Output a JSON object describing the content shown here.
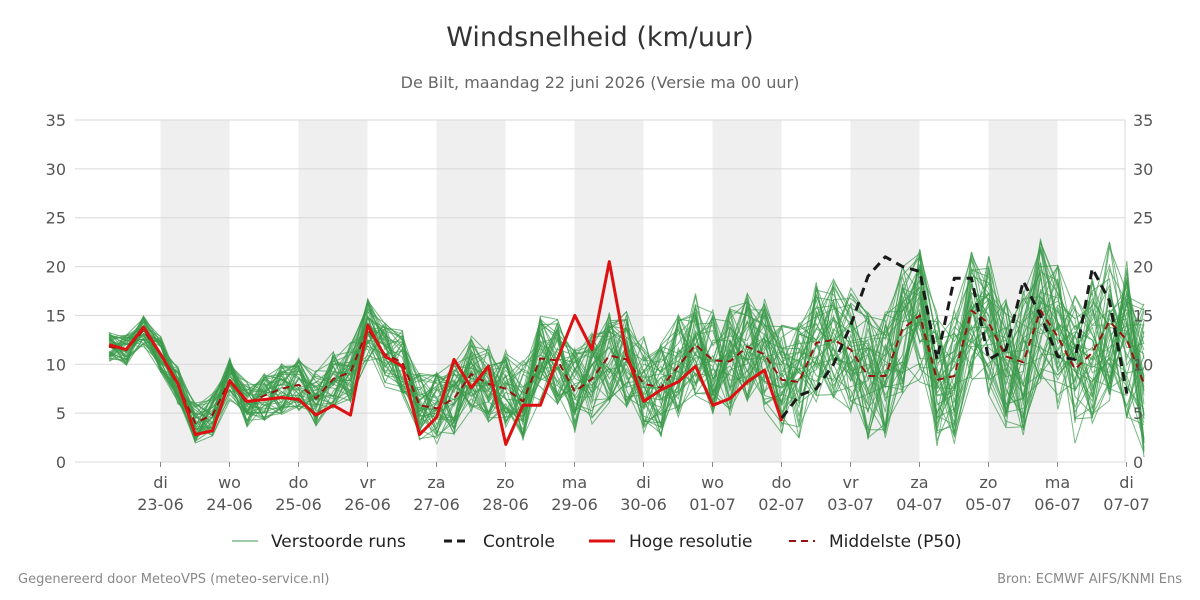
{
  "chart_data": {
    "type": "line",
    "title": "Windsnelheid (km/uur)",
    "subtitle": "De Bilt, maandag 22 juni 2026 (Versie ma 00 uur)",
    "ylim": [
      0,
      35
    ],
    "yticks": [
      0,
      5,
      10,
      15,
      20,
      25,
      30,
      35
    ],
    "x_ticks": [
      {
        "day": "di",
        "date": "23-06"
      },
      {
        "day": "wo",
        "date": "24-06"
      },
      {
        "day": "do",
        "date": "25-06"
      },
      {
        "day": "vr",
        "date": "26-06"
      },
      {
        "day": "za",
        "date": "27-06"
      },
      {
        "day": "zo",
        "date": "28-06"
      },
      {
        "day": "ma",
        "date": "29-06"
      },
      {
        "day": "di",
        "date": "30-06"
      },
      {
        "day": "wo",
        "date": "01-07"
      },
      {
        "day": "do",
        "date": "02-07"
      },
      {
        "day": "vr",
        "date": "03-07"
      },
      {
        "day": "za",
        "date": "04-07"
      },
      {
        "day": "zo",
        "date": "05-07"
      },
      {
        "day": "ma",
        "date": "06-07"
      },
      {
        "day": "di",
        "date": "07-07"
      }
    ],
    "grid": true,
    "legend_position": "bottom",
    "series": [
      {
        "name": "Hoge resolutie",
        "color": "#dd1111",
        "values": [
          12,
          11.5,
          13.8,
          11,
          8,
          2.8,
          3.2,
          8.3,
          6.2,
          6.4,
          6.6,
          6.4,
          4.8,
          5.8,
          4.8,
          14,
          10.8,
          9.8,
          2.8,
          4.6,
          10.5,
          7.6,
          9.8,
          1.8,
          5.8,
          5.8,
          10.5,
          15,
          11.5,
          20.5,
          11,
          6.2,
          7.4,
          8.2,
          9.8,
          5.8,
          6.5,
          8.2,
          9.4,
          4.2
        ]
      },
      {
        "name": "Controle",
        "color": "#1a1a1a",
        "values": [
          null,
          null,
          null,
          null,
          null,
          null,
          null,
          null,
          null,
          null,
          null,
          null,
          null,
          null,
          null,
          null,
          null,
          null,
          null,
          null,
          null,
          null,
          null,
          null,
          null,
          null,
          null,
          null,
          null,
          null,
          null,
          null,
          null,
          null,
          null,
          null,
          null,
          null,
          null,
          4.5,
          6.8,
          7.5,
          10,
          14,
          19,
          21,
          20,
          19.5,
          10.5,
          18.8,
          18.8,
          10.5,
          11.5,
          18.5,
          15,
          10.8,
          10.5,
          19.8,
          16.5,
          7
        ]
      },
      {
        "name": "Middelste (P50)",
        "color": "#991111",
        "values": [
          11.8,
          11.5,
          13.5,
          11,
          7.8,
          4,
          4.8,
          8.4,
          6,
          6.8,
          7.5,
          7.9,
          6.5,
          8.5,
          9.2,
          13.6,
          11,
          10.2,
          5.8,
          5.5,
          6.5,
          9,
          8,
          7.5,
          6.2,
          10.6,
          10.4,
          7.2,
          8.5,
          10.9,
          10.5,
          8,
          7.6,
          9.8,
          12,
          10.4,
          10.3,
          11.8,
          11,
          8.4,
          8.2,
          12.2,
          12.5,
          11.5,
          8.8,
          8.8,
          13.6,
          15,
          8.4,
          8.8,
          15.5,
          14.2,
          10.8,
          10.2,
          15.5,
          12.8,
          9.5,
          11.2,
          14.4,
          12.5,
          8
        ]
      }
    ],
    "ensemble": {
      "name": "Verstoorde runs",
      "color": "#3a9a4a"
    }
  },
  "footer": {
    "left": "Gegenereerd door MeteoVPS (meteo-service.nl)",
    "right": "Bron: ECMWF AIFS/KNMI Ens"
  }
}
